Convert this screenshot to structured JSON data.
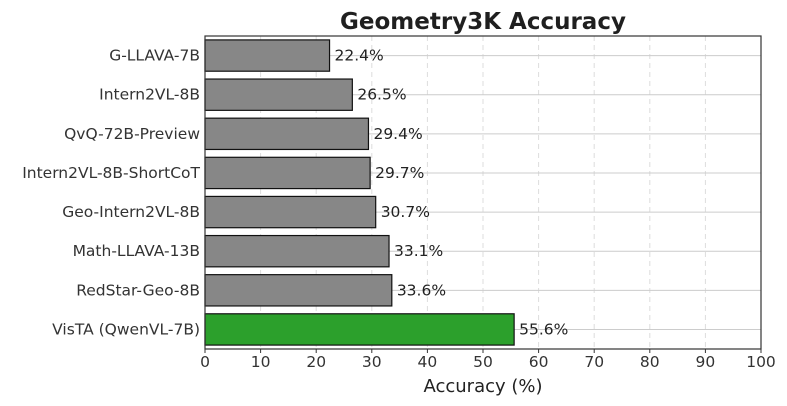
{
  "chart_data": {
    "type": "bar",
    "orientation": "horizontal",
    "title": "Geometry3K Accuracy",
    "xlabel": "Accuracy (%)",
    "ylabel": "",
    "xlim": [
      0,
      100
    ],
    "xticks": [
      0,
      10,
      20,
      30,
      40,
      50,
      60,
      70,
      80,
      90,
      100
    ],
    "grid": true,
    "categories": [
      "G-LLAVA-7B",
      "Intern2VL-8B",
      "QvQ-72B-Preview",
      "Intern2VL-8B-ShortCoT",
      "Geo-Intern2VL-8B",
      "Math-LLAVA-13B",
      "RedStar-Geo-8B",
      "VisTA (QwenVL-7B)"
    ],
    "values": [
      22.4,
      26.5,
      29.4,
      29.7,
      30.7,
      33.1,
      33.6,
      55.6
    ],
    "value_labels": [
      "22.4%",
      "26.5%",
      "29.4%",
      "29.7%",
      "30.7%",
      "33.1%",
      "33.6%",
      "55.6%"
    ],
    "bar_colors": [
      "#878787",
      "#878787",
      "#878787",
      "#878787",
      "#878787",
      "#878787",
      "#878787",
      "#2ca02c"
    ]
  }
}
